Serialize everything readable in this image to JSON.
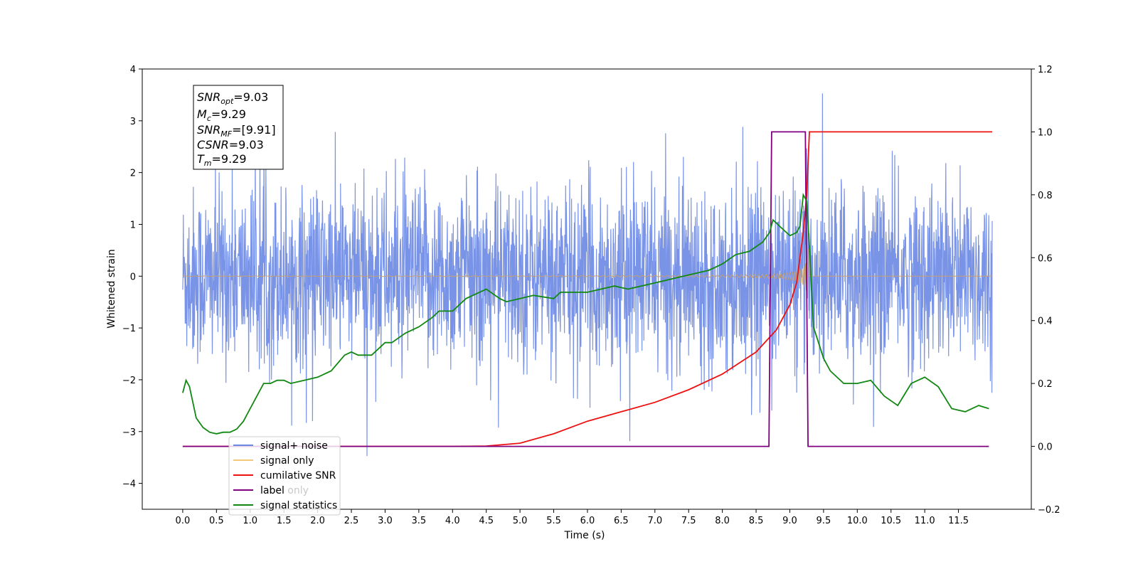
{
  "chart_data": {
    "type": "line",
    "xlabel": "Time (s)",
    "ylabel_left": "Whitened strain",
    "ylabel_right": "",
    "xlim": [
      -0.6,
      12.58
    ],
    "ylim_left": [
      -4.5,
      4.0
    ],
    "ylim_right": [
      -0.2,
      1.2
    ],
    "x_ticks": [
      "0.0",
      "0.5",
      "1.0",
      "1.5",
      "2.0",
      "2.5",
      "3.0",
      "3.5",
      "4.0",
      "4.5",
      "5.0",
      "5.5",
      "6.0",
      "6.5",
      "7.0",
      "7.5",
      "8.0",
      "8.5",
      "9.0",
      "9.5",
      "10.0",
      "10.5",
      "11.0",
      "11.5"
    ],
    "y_ticks_left": [
      "4",
      "3",
      "2",
      "1",
      "0",
      "−1",
      "−2",
      "−3",
      "−4"
    ],
    "y_ticks_right": [
      "1.2",
      "1.0",
      "0.8",
      "0.6",
      "0.4",
      "0.2",
      "0.0",
      "−0.2"
    ],
    "grid": false,
    "legend_placement": "lower-left",
    "colors": {
      "signal_noise": "#6a87e4",
      "signal_only": "#c8a070",
      "cumulative_snr": "#ee1111",
      "label": "#800080",
      "signal_statistics": "#118811"
    },
    "info_box": {
      "snr_opt": {
        "base": "SNR",
        "sub": "opt",
        "value": "=9.03"
      },
      "mc": {
        "base": "M",
        "sub": "c",
        "value": "=9.29"
      },
      "snr_mf": {
        "base": "SNR",
        "sub": "MF",
        "value": "=[9.91]"
      },
      "csnr": {
        "base": "CSNR",
        "value": "=9.03"
      },
      "tm": {
        "base": "T",
        "sub": "m",
        "value": "=9.29"
      }
    },
    "series": [
      {
        "name": "signal+ noise",
        "axis": "left",
        "description_range": [
          -3.5,
          3.6
        ],
        "x_range": [
          0.0,
          12.0
        ]
      },
      {
        "name": "signal only",
        "axis": "left",
        "chirp_end": 9.29,
        "peak_amplitude": 0.7
      },
      {
        "name": "cumilative SNR",
        "axis": "right",
        "x": [
          0.0,
          4.0,
          4.5,
          5.0,
          5.5,
          6.0,
          6.5,
          7.0,
          7.5,
          8.0,
          8.5,
          8.8,
          9.0,
          9.1,
          9.2,
          9.25,
          9.29,
          12.0
        ],
        "y": [
          0.0,
          0.0,
          0.001,
          0.01,
          0.04,
          0.08,
          0.11,
          0.14,
          0.18,
          0.23,
          0.3,
          0.37,
          0.45,
          0.52,
          0.68,
          0.8,
          1.0,
          1.0
        ]
      },
      {
        "name": "label",
        "axis": "right",
        "x": [
          0.0,
          8.69,
          8.73,
          9.23,
          9.27,
          11.95
        ],
        "y": [
          0.0,
          0.0,
          1.0,
          1.0,
          0.0,
          0.0
        ]
      },
      {
        "name": "signal only",
        "axis": "right",
        "note": "hidden legend entry"
      },
      {
        "name": "signal statistics",
        "axis": "right",
        "x": [
          0.0,
          0.05,
          0.1,
          0.2,
          0.3,
          0.4,
          0.5,
          0.6,
          0.7,
          0.8,
          0.9,
          1.0,
          1.1,
          1.2,
          1.3,
          1.4,
          1.5,
          1.6,
          1.8,
          2.0,
          2.2,
          2.4,
          2.5,
          2.6,
          2.8,
          3.0,
          3.1,
          3.3,
          3.5,
          3.7,
          3.8,
          4.0,
          4.2,
          4.4,
          4.5,
          4.7,
          4.8,
          5.0,
          5.2,
          5.5,
          5.6,
          5.8,
          6.0,
          6.2,
          6.4,
          6.6,
          6.8,
          7.0,
          7.2,
          7.4,
          7.6,
          7.8,
          8.0,
          8.2,
          8.4,
          8.6,
          8.7,
          8.75,
          8.85,
          9.0,
          9.1,
          9.15,
          9.2,
          9.25,
          9.3,
          9.35,
          9.5,
          9.6,
          9.8,
          10.0,
          10.2,
          10.4,
          10.6,
          10.8,
          11.0,
          11.2,
          11.4,
          11.6,
          11.8,
          11.95
        ],
        "y": [
          0.17,
          0.21,
          0.19,
          0.09,
          0.06,
          0.045,
          0.04,
          0.045,
          0.045,
          0.055,
          0.08,
          0.12,
          0.16,
          0.2,
          0.2,
          0.21,
          0.21,
          0.2,
          0.21,
          0.22,
          0.24,
          0.29,
          0.3,
          0.29,
          0.29,
          0.33,
          0.33,
          0.36,
          0.38,
          0.41,
          0.43,
          0.43,
          0.47,
          0.49,
          0.5,
          0.47,
          0.46,
          0.47,
          0.48,
          0.47,
          0.49,
          0.49,
          0.49,
          0.5,
          0.51,
          0.5,
          0.51,
          0.52,
          0.53,
          0.54,
          0.55,
          0.56,
          0.58,
          0.61,
          0.62,
          0.65,
          0.68,
          0.72,
          0.7,
          0.67,
          0.68,
          0.7,
          0.8,
          0.78,
          0.6,
          0.38,
          0.28,
          0.24,
          0.2,
          0.2,
          0.21,
          0.16,
          0.13,
          0.2,
          0.22,
          0.19,
          0.12,
          0.11,
          0.13,
          0.12
        ]
      }
    ],
    "legend": [
      "signal+ noise",
      "signal only",
      "cumilative SNR",
      "label",
      "signal statistics"
    ],
    "legend_overlaid_text": "label only"
  }
}
